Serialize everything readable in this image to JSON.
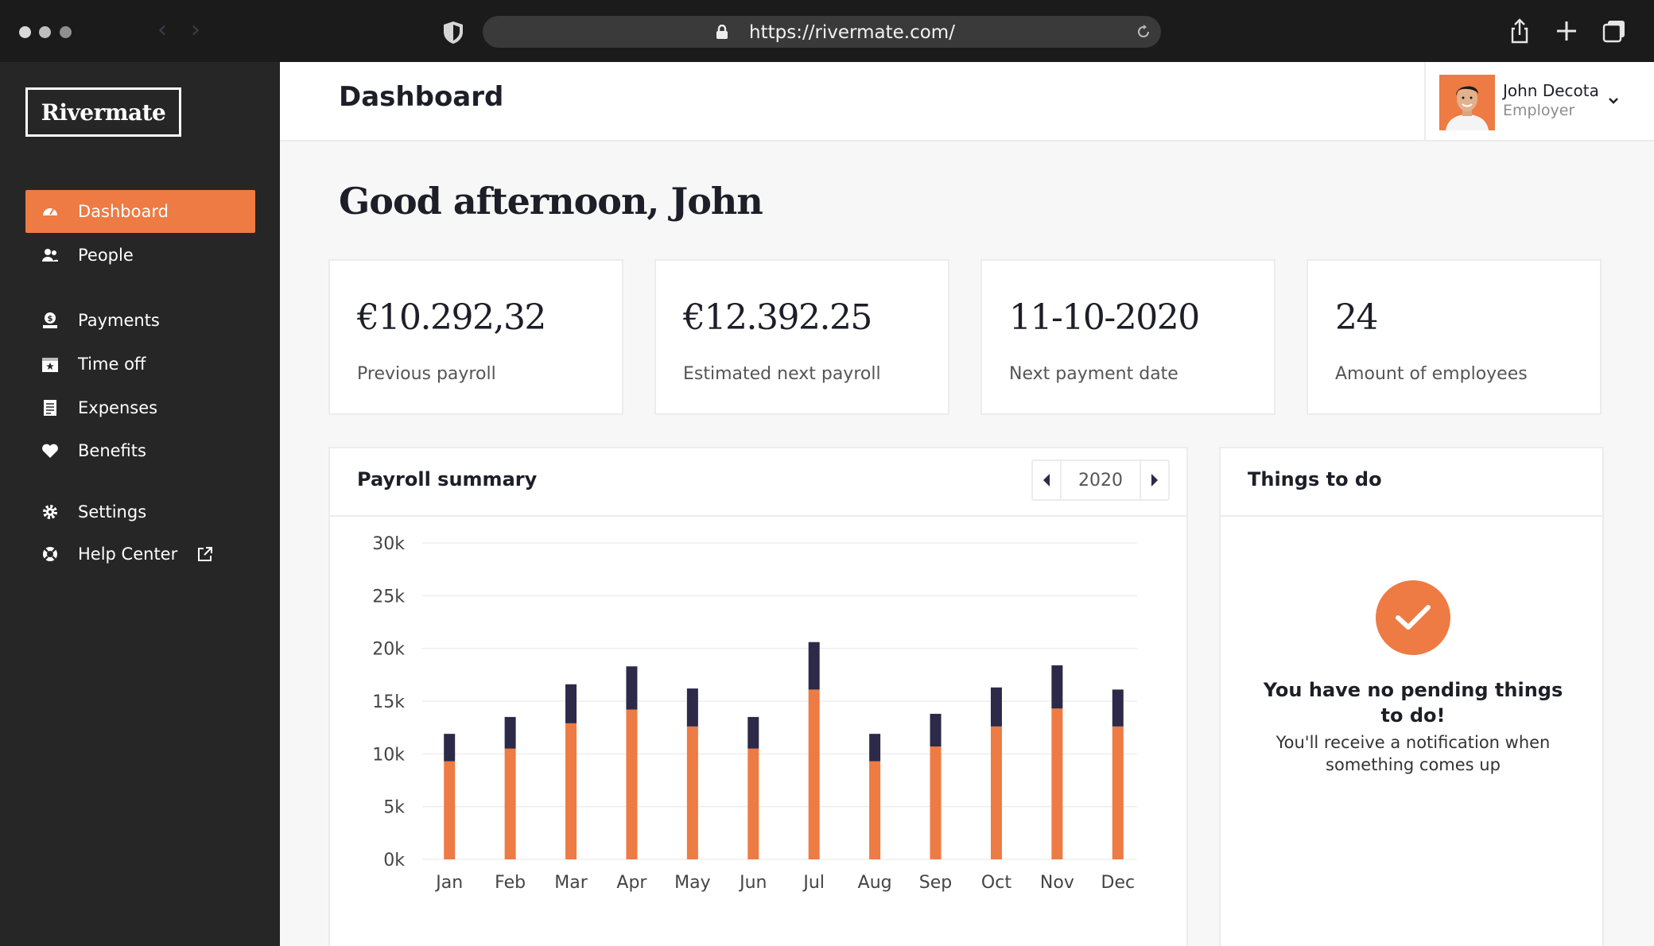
{
  "browser": {
    "url": "https://rivermate.com/",
    "icons": [
      "shield-icon",
      "lock-icon",
      "reload-icon",
      "share-icon",
      "plus-icon",
      "tabs-icon"
    ]
  },
  "sidebar": {
    "logo": "Rivermate",
    "items": [
      {
        "label": "Dashboard",
        "icon": "dashboard-icon",
        "active": true
      },
      {
        "label": "People",
        "icon": "people-icon"
      },
      {
        "label": "Payments",
        "icon": "payments-icon"
      },
      {
        "label": "Time off",
        "icon": "calendar-icon"
      },
      {
        "label": "Expenses",
        "icon": "receipt-icon"
      },
      {
        "label": "Benefits",
        "icon": "heart-icon"
      },
      {
        "label": "Settings",
        "icon": "gear-icon"
      },
      {
        "label": "Help Center",
        "icon": "lifebuoy-icon"
      }
    ]
  },
  "header": {
    "title": "Dashboard",
    "user": {
      "name": "John Decota",
      "role": "Employer"
    }
  },
  "greeting": "Good afternoon, John",
  "stats": [
    {
      "value": "€10.292,32",
      "label": "Previous payroll"
    },
    {
      "value": "€12.392.25",
      "label": "Estimated next payroll"
    },
    {
      "value": "11-10-2020",
      "label": "Next payment date"
    },
    {
      "value": "24",
      "label": "Amount of employees"
    }
  ],
  "payroll": {
    "title": "Payroll summary",
    "year": "2020"
  },
  "todo": {
    "title": "Things to do",
    "empty_title": "You have no pending things to do!",
    "empty_sub": "You'll receive a notification when something comes up"
  },
  "colors": {
    "accent": "#ee7b43",
    "dark_bar": "#2c2a48",
    "sidebar": "#262626"
  },
  "chart_data": {
    "type": "bar",
    "stacked": true,
    "categories": [
      "Jan",
      "Feb",
      "Mar",
      "Apr",
      "May",
      "Jun",
      "Jul",
      "Aug",
      "Sep",
      "Oct",
      "Nov",
      "Dec"
    ],
    "series": [
      {
        "values": [
          9300,
          10500,
          12900,
          14200,
          12600,
          10500,
          16100,
          9300,
          10700,
          12600,
          14300,
          12600
        ]
      },
      {
        "values": [
          2600,
          3000,
          3700,
          4100,
          3600,
          3000,
          4500,
          2600,
          3100,
          3700,
          4100,
          3500
        ]
      }
    ],
    "yticks": [
      "30k",
      "25k",
      "20k",
      "15k",
      "10k",
      "5k",
      "0k"
    ],
    "ylim": [
      0,
      30000
    ],
    "grid": true
  }
}
